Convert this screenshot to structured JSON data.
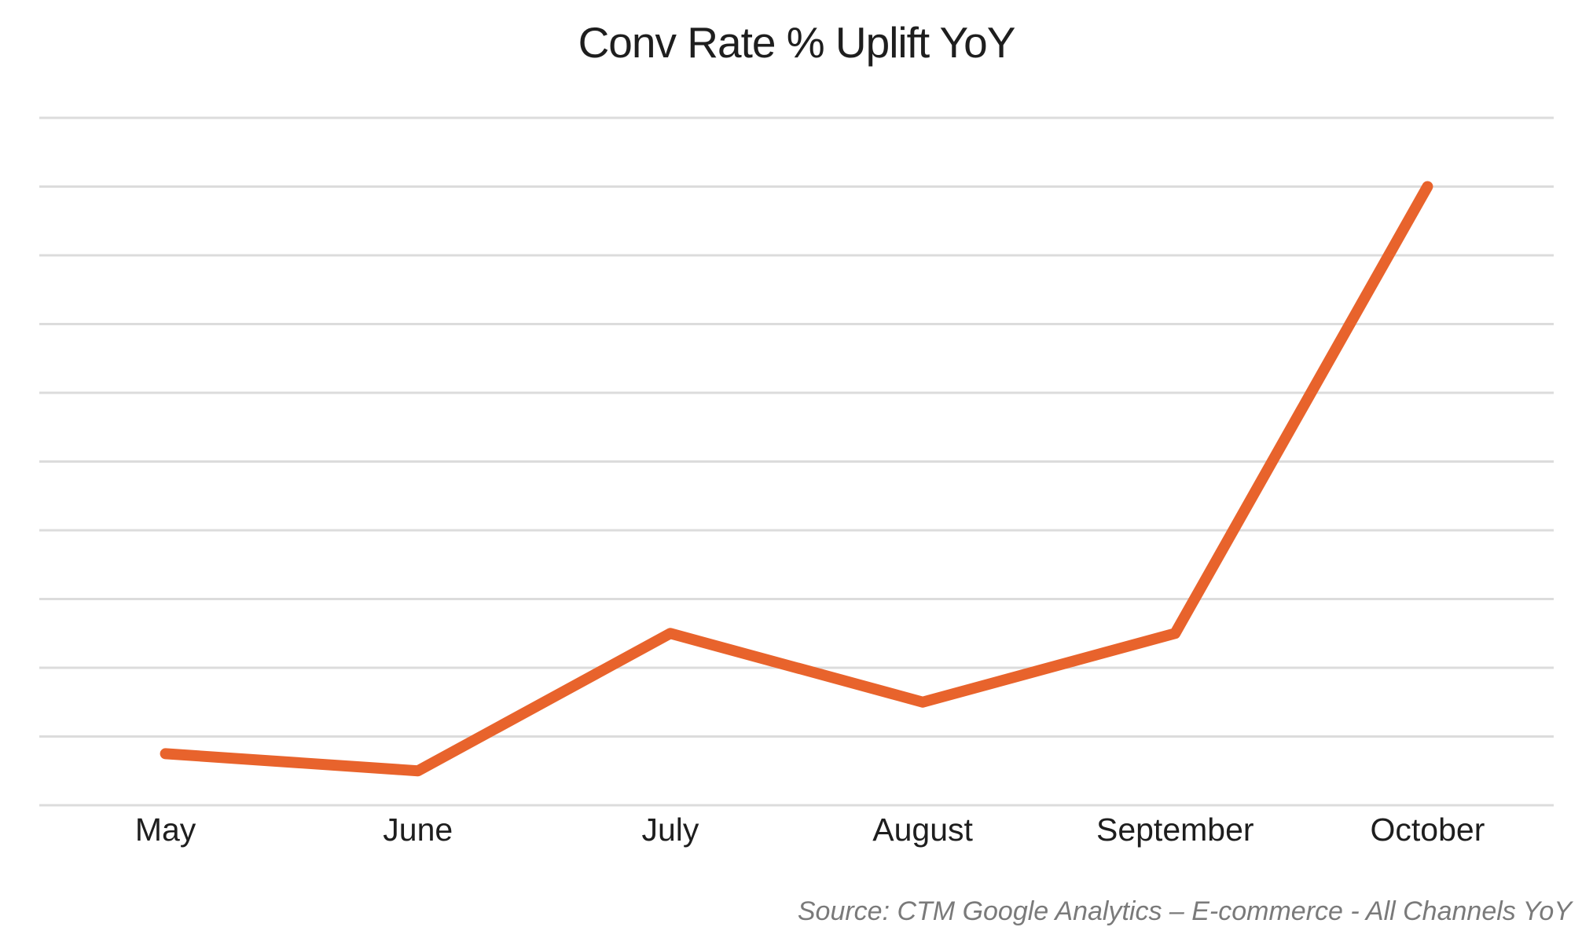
{
  "chart": {
    "title": "Conv Rate % Uplift YoY"
  },
  "footer": {
    "source": "Source: CTM Google Analytics – E-commerce - All Channels YoY"
  },
  "colors": {
    "background": "#ffffff",
    "line": "#e8632c",
    "gridline": "#dcdcdc",
    "title_text": "#1e1e1e",
    "axis_label_text": "#1e1e1e",
    "source_text": "#7a7a7a"
  },
  "chart_data": {
    "type": "line",
    "title": "Conv Rate % Uplift YoY",
    "categories": [
      "May",
      "June",
      "July",
      "August",
      "September",
      "October"
    ],
    "series": [
      {
        "name": "Conv Rate % Uplift YoY",
        "values": [
          0.75,
          0.5,
          2.5,
          1.5,
          2.5,
          9.0
        ]
      }
    ],
    "xlabel": "",
    "ylabel": "",
    "ylim": [
      0,
      10
    ],
    "gridline_step": 1,
    "grid": "horizontal",
    "y_axis_labels_visible": false,
    "legend_position": "none",
    "marker": "none",
    "annotation": "Source: CTM Google Analytics – E-commerce - All Channels YoY"
  }
}
